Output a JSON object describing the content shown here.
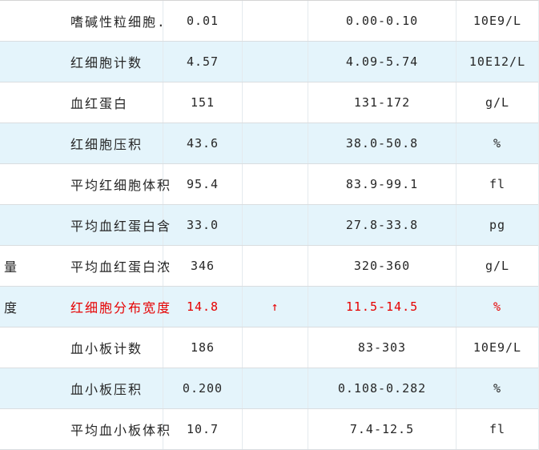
{
  "table": {
    "description": "lab-blood-test-results",
    "colors": {
      "row_bg": "#ffffff",
      "row_alt_bg": "#e4f4fb",
      "grid_line": "#d9dde0",
      "text": "#262626",
      "abnormal": "#e60000"
    },
    "flag_icons": {
      "high": "↑"
    },
    "rows": [
      {
        "prefix": "",
        "name": "嗜碱性粒细胞.",
        "value": "0.01",
        "flag": "",
        "range": "0.00-0.10",
        "unit": "10E9/L",
        "abnormal": false
      },
      {
        "prefix": "",
        "name": "红细胞计数",
        "value": "4.57",
        "flag": "",
        "range": "4.09-5.74",
        "unit": "10E12/L",
        "abnormal": false
      },
      {
        "prefix": "",
        "name": "血红蛋白",
        "value": "151",
        "flag": "",
        "range": "131-172",
        "unit": "g/L",
        "abnormal": false
      },
      {
        "prefix": "",
        "name": "红细胞压积",
        "value": "43.6",
        "flag": "",
        "range": "38.0-50.8",
        "unit": "%",
        "abnormal": false
      },
      {
        "prefix": "",
        "name": "平均红细胞体积",
        "value": "95.4",
        "flag": "",
        "range": "83.9-99.1",
        "unit": "fl",
        "abnormal": false
      },
      {
        "prefix": "",
        "name": "平均血红蛋白含",
        "value": "33.0",
        "flag": "",
        "range": "27.8-33.8",
        "unit": "pg",
        "abnormal": false
      },
      {
        "prefix": "量",
        "name": "平均血红蛋白浓",
        "value": "346",
        "flag": "",
        "range": "320-360",
        "unit": "g/L",
        "abnormal": false
      },
      {
        "prefix": "度",
        "name": "红细胞分布宽度",
        "value": "14.8",
        "flag": "↑",
        "range": "11.5-14.5",
        "unit": "%",
        "abnormal": true
      },
      {
        "prefix": "",
        "name": "血小板计数",
        "value": "186",
        "flag": "",
        "range": "83-303",
        "unit": "10E9/L",
        "abnormal": false
      },
      {
        "prefix": "",
        "name": "血小板压积",
        "value": "0.200",
        "flag": "",
        "range": "0.108-0.282",
        "unit": "%",
        "abnormal": false
      },
      {
        "prefix": "",
        "name": "平均血小板体积",
        "value": "10.7",
        "flag": "",
        "range": "7.4-12.5",
        "unit": "fl",
        "abnormal": false
      }
    ]
  }
}
